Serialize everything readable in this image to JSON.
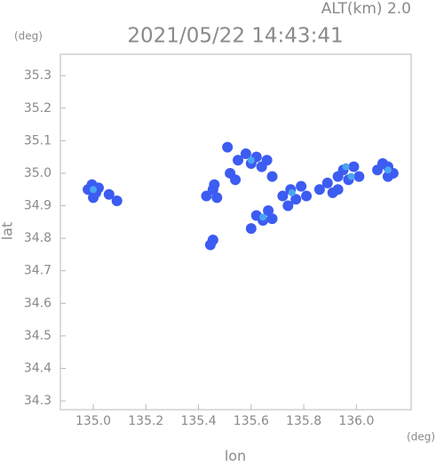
{
  "chart_data": {
    "type": "scatter",
    "title": "2021/05/22 14:43:41",
    "subtitle": "ALT(km) 2.0",
    "y_unit": "(deg)",
    "x_unit": "(deg)",
    "x_label": "lon",
    "y_label": "lat",
    "xlim": [
      134.875,
      136.208
    ],
    "ylim": [
      34.273,
      35.366
    ],
    "xticks": [
      {
        "value": 135.0,
        "label": "135.0"
      },
      135.2,
      135.4,
      135.6,
      135.8,
      {
        "value": 136.0,
        "label": "136.0"
      }
    ],
    "yticks": [
      34.3,
      34.4,
      34.5,
      34.6,
      34.7,
      34.8,
      34.9,
      {
        "value": 35.0,
        "label": "35.0"
      },
      35.1,
      35.2,
      35.3
    ],
    "series": [
      {
        "color": "#3c5cf2",
        "x": [
          134.98,
          134.995,
          135.01,
          135.0,
          135.02,
          135.06,
          135.09,
          135.43,
          135.455,
          135.47,
          135.46,
          135.455,
          135.445,
          135.52,
          135.55,
          135.58,
          135.6,
          135.62,
          135.64,
          135.66,
          135.68,
          135.54,
          135.51,
          135.62,
          135.645,
          135.665,
          135.68,
          135.6,
          135.72,
          135.75,
          135.77,
          135.79,
          135.81,
          135.74,
          135.86,
          135.89,
          135.91,
          135.93,
          135.95,
          135.97,
          135.99,
          136.01,
          135.93,
          136.08,
          136.1,
          136.12,
          136.14,
          136.12
        ],
        "y": [
          34.95,
          34.965,
          34.94,
          34.925,
          34.955,
          34.935,
          34.915,
          34.93,
          34.95,
          34.925,
          34.965,
          34.795,
          34.78,
          35.0,
          35.04,
          35.06,
          35.03,
          35.05,
          35.02,
          35.04,
          34.99,
          34.98,
          35.08,
          34.87,
          34.855,
          34.885,
          34.86,
          34.83,
          34.93,
          34.95,
          34.92,
          34.96,
          34.93,
          34.9,
          34.95,
          34.97,
          34.94,
          34.99,
          35.01,
          34.98,
          35.02,
          34.99,
          34.95,
          35.01,
          35.03,
          35.02,
          35.0,
          34.99
        ]
      },
      {
        "color": "#4aa6f0",
        "x": [
          135.0,
          135.645,
          135.98,
          135.96,
          136.12,
          135.755,
          135.6
        ],
        "y": [
          34.95,
          34.865,
          34.99,
          35.02,
          35.01,
          34.94,
          35.04
        ]
      }
    ]
  }
}
